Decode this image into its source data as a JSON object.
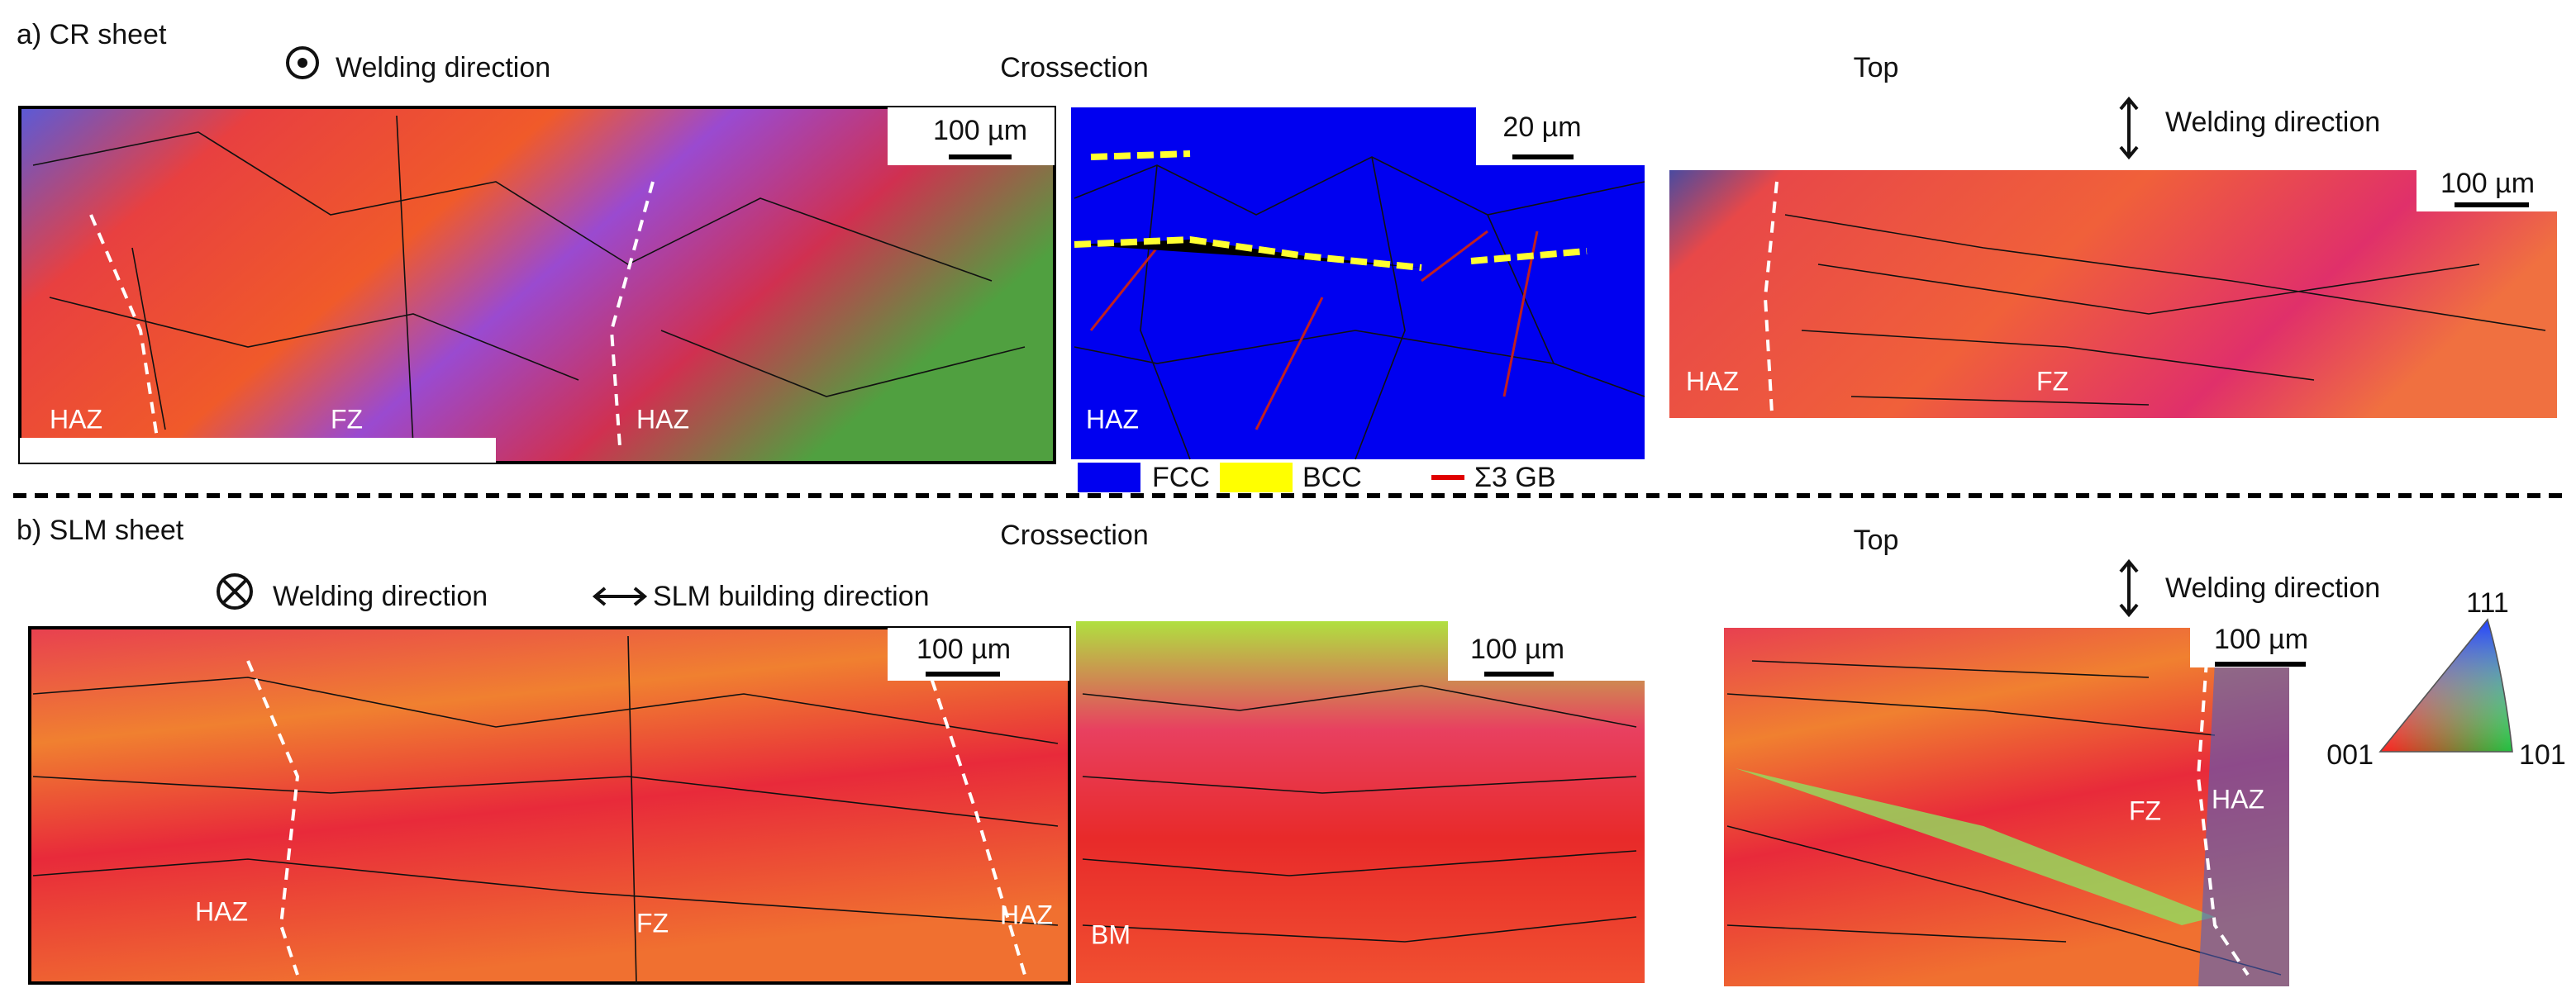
{
  "panel_a": {
    "label": "a) CR sheet",
    "welding_direction": "Welding direction",
    "crossection": "Crossection",
    "top": "Top",
    "top_welding_direction": "Welding direction",
    "maps": [
      {
        "scale": "100 µm",
        "zones": [
          "HAZ",
          "FZ",
          "HAZ"
        ]
      },
      {
        "scale": "20 µm",
        "zones": [
          "HAZ"
        ]
      },
      {
        "scale": "100 µm",
        "zones": [
          "HAZ",
          "FZ"
        ]
      }
    ],
    "legend": [
      "FCC",
      "BCC",
      "Σ3 GB"
    ]
  },
  "panel_b": {
    "label": "b) SLM sheet",
    "welding_direction": "Welding direction",
    "building_direction": "SLM building direction",
    "crossection": "Crossection",
    "top": "Top",
    "top_welding_direction": "Welding direction",
    "maps": [
      {
        "scale": "100 µm",
        "zones": [
          "HAZ",
          "FZ",
          "HAZ"
        ]
      },
      {
        "scale": "100 µm",
        "zones": [
          "BM"
        ]
      },
      {
        "scale": "100 µm",
        "zones": [
          "FZ",
          "HAZ"
        ]
      }
    ],
    "ipf": [
      "111",
      "001",
      "101"
    ]
  }
}
